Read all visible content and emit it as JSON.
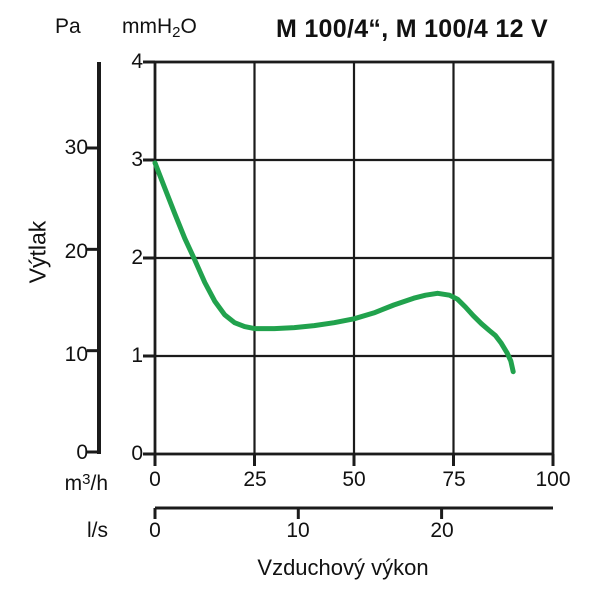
{
  "title": "M 100/4“, M 100/4 12 V",
  "labels": {
    "pa_unit": "Pa",
    "mmh2o_prefix": "mmH",
    "mmh2o_sub": "2",
    "mmh2o_suffix": "O",
    "m3h_prefix": "m",
    "m3h_sup": "3",
    "m3h_suffix": "/h",
    "ls_unit": "l/s",
    "ylabel": "Výtlak",
    "xlabel": "Vzduchový výkon"
  },
  "axes": {
    "mmh2o": {
      "ticks": [
        "4",
        "3",
        "2",
        "1",
        "0"
      ]
    },
    "pa": {
      "ticks": [
        "30",
        "20",
        "10",
        "0"
      ]
    },
    "m3h": {
      "ticks": [
        "0",
        "25",
        "50",
        "75",
        "100"
      ]
    },
    "ls": {
      "ticks": [
        "0",
        "10",
        "20"
      ]
    }
  },
  "colors": {
    "curve": "#21a24d",
    "axis": "#1b1b1b",
    "background": "#ffffff"
  },
  "chart_data": {
    "type": "line",
    "title": "M 100/4“, M 100/4 12 V",
    "xlabel": "Vzduchový výkon",
    "ylabel": "Výtlak",
    "grid": true,
    "x_axes": [
      {
        "unit": "m3/h",
        "range": [
          0,
          100
        ],
        "ticks": [
          0,
          25,
          50,
          75,
          100
        ]
      },
      {
        "unit": "l/s",
        "ticks": [
          0,
          10,
          20
        ]
      }
    ],
    "y_axes": [
      {
        "unit": "mmH2O",
        "range": [
          0,
          4
        ],
        "ticks": [
          0,
          1,
          2,
          3,
          4
        ]
      },
      {
        "unit": "Pa",
        "ticks": [
          0,
          10,
          20,
          30
        ]
      }
    ],
    "gridlines": {
      "x_values_m3h": [
        25,
        50,
        75
      ],
      "y_values_mmh2o": [
        1,
        2,
        3
      ]
    },
    "series": [
      {
        "name": "M 100/4“, M 100/4 12 V",
        "color": "#21a24d",
        "x_m3h": [
          0,
          2.5,
          5,
          7.5,
          10,
          12.5,
          15,
          17.5,
          20,
          22.5,
          25,
          30,
          35,
          40,
          45,
          50,
          55,
          60,
          65,
          68,
          71,
          74,
          76,
          78,
          80,
          82,
          84,
          85.5,
          87,
          88.5,
          89.4,
          90
        ],
        "y_mmh2o": [
          2.97,
          2.71,
          2.45,
          2.2,
          1.98,
          1.75,
          1.56,
          1.42,
          1.34,
          1.3,
          1.28,
          1.28,
          1.29,
          1.31,
          1.34,
          1.38,
          1.44,
          1.52,
          1.59,
          1.62,
          1.64,
          1.62,
          1.58,
          1.5,
          1.41,
          1.33,
          1.26,
          1.21,
          1.13,
          1.03,
          0.95,
          0.84
        ]
      }
    ]
  }
}
